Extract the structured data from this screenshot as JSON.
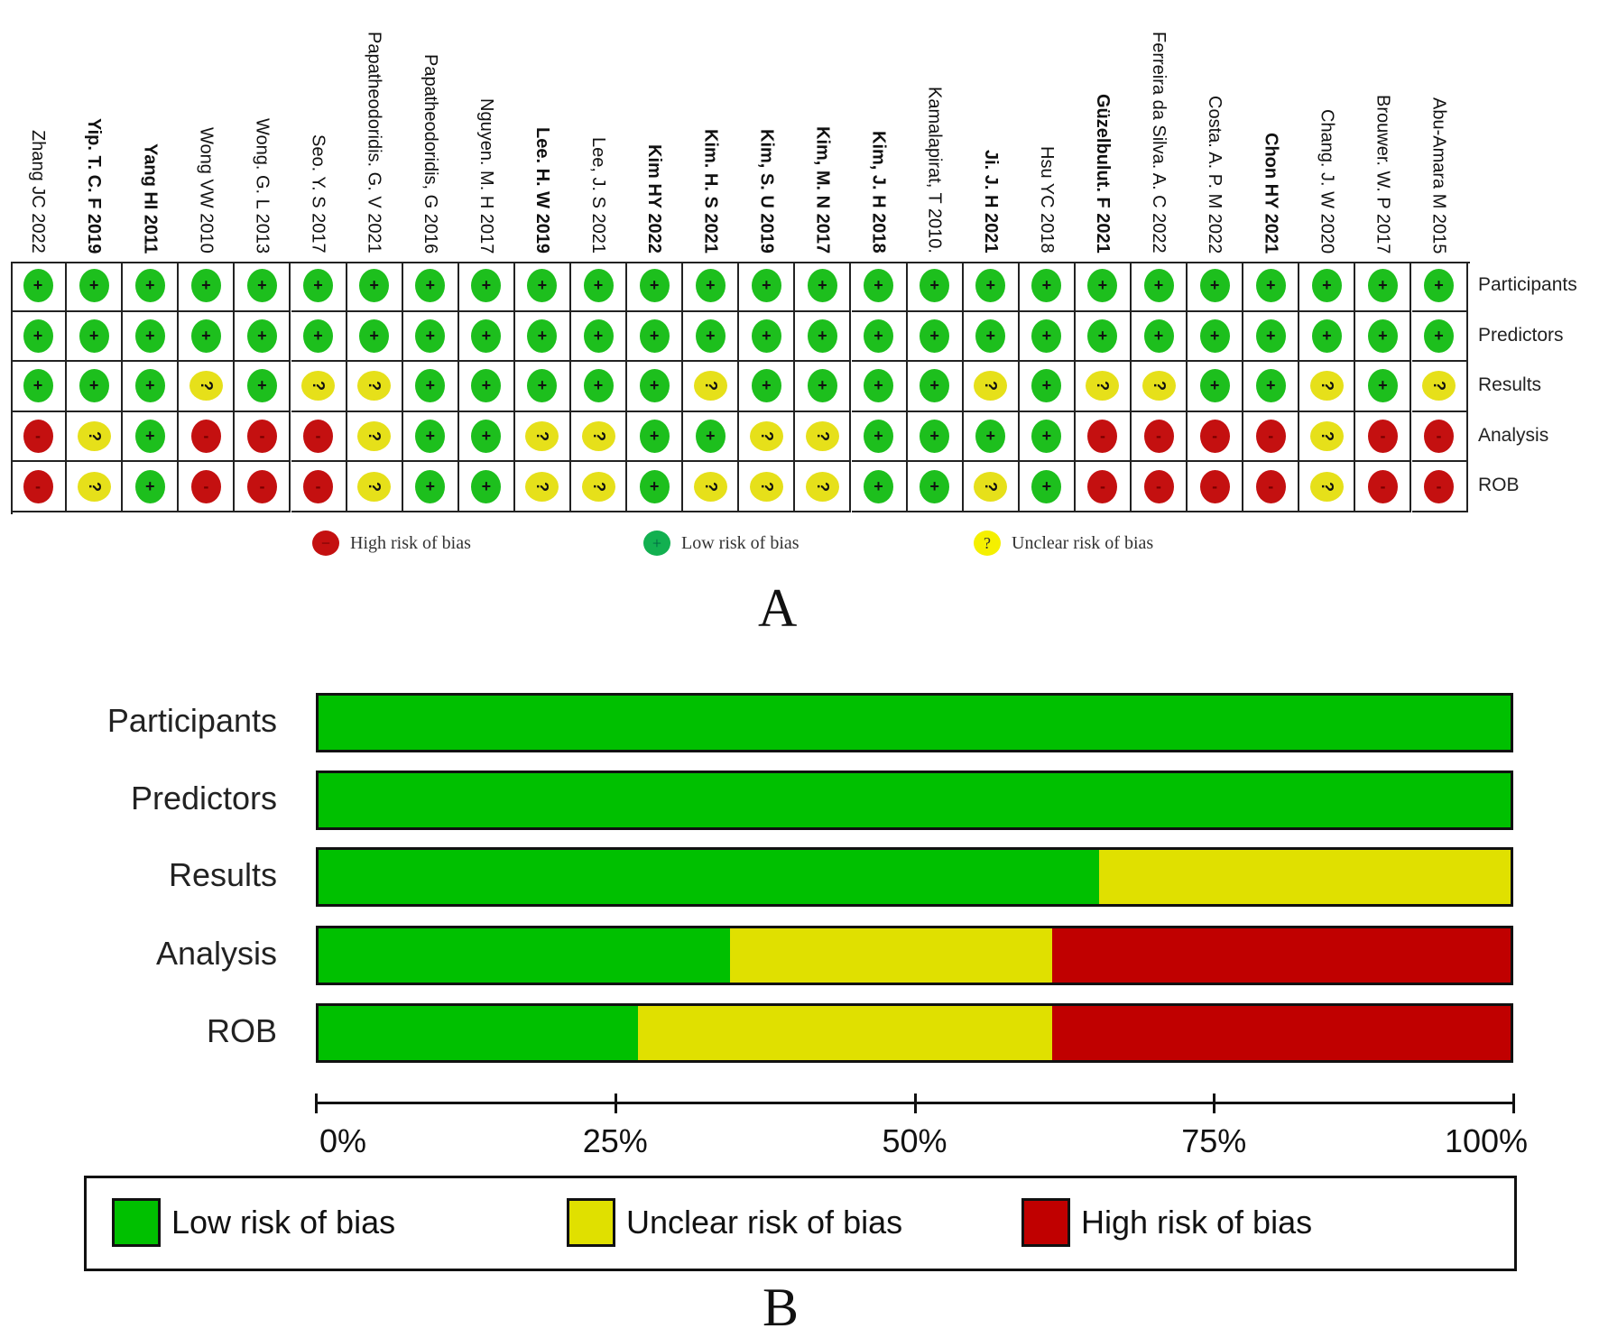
{
  "colors": {
    "low": "#00c000",
    "unclear": "#e0e000",
    "high": "#c00000",
    "low_dot": "#1dbf1d",
    "unclear_dot": "#e6e01a",
    "high_dot": "#c41010"
  },
  "risk_table": {
    "domains": [
      "Participants",
      "Predictors",
      "Results",
      "Analysis",
      "ROB"
    ],
    "studies": [
      {
        "name": "Zhang JC 2022",
        "r": [
          "L",
          "L",
          "L",
          "H",
          "H"
        ]
      },
      {
        "name": "Yip. T. C. F 2019",
        "r": [
          "L",
          "L",
          "L",
          "U",
          "U"
        ]
      },
      {
        "name": "Yang HI 2011",
        "r": [
          "L",
          "L",
          "L",
          "L",
          "L"
        ]
      },
      {
        "name": "Wong VW 2010",
        "r": [
          "L",
          "L",
          "U",
          "H",
          "H"
        ]
      },
      {
        "name": "Wong. G. L 2013",
        "r": [
          "L",
          "L",
          "L",
          "H",
          "H"
        ]
      },
      {
        "name": "Seo. Y. S 2017",
        "r": [
          "L",
          "L",
          "U",
          "H",
          "H"
        ]
      },
      {
        "name": "Papatheodoridis. G. V 2021",
        "r": [
          "L",
          "L",
          "U",
          "U",
          "U"
        ]
      },
      {
        "name": "Papatheodoridis, G 2016",
        "r": [
          "L",
          "L",
          "L",
          "L",
          "L"
        ]
      },
      {
        "name": "Nguyen. M. H 2017",
        "r": [
          "L",
          "L",
          "L",
          "L",
          "L"
        ]
      },
      {
        "name": "Lee. H. W 2019",
        "r": [
          "L",
          "L",
          "L",
          "U",
          "U"
        ]
      },
      {
        "name": "Lee, J. S 2021",
        "r": [
          "L",
          "L",
          "L",
          "U",
          "U"
        ]
      },
      {
        "name": "Kim HY 2022",
        "r": [
          "L",
          "L",
          "L",
          "L",
          "L"
        ]
      },
      {
        "name": "Kim. H. S 2021",
        "r": [
          "L",
          "L",
          "U",
          "L",
          "U"
        ]
      },
      {
        "name": "Kim, S. U 2019",
        "r": [
          "L",
          "L",
          "L",
          "U",
          "U"
        ]
      },
      {
        "name": "Kim, M. N 2017",
        "r": [
          "L",
          "L",
          "L",
          "U",
          "U"
        ]
      },
      {
        "name": "Kim, J. H 2018",
        "r": [
          "L",
          "L",
          "L",
          "L",
          "L"
        ]
      },
      {
        "name": "Kamalapirat, T 2010.",
        "r": [
          "L",
          "L",
          "L",
          "L",
          "L"
        ]
      },
      {
        "name": "Ji. J. H 2021",
        "r": [
          "L",
          "L",
          "U",
          "L",
          "U"
        ]
      },
      {
        "name": "Hsu YC 2018",
        "r": [
          "L",
          "L",
          "L",
          "L",
          "L"
        ]
      },
      {
        "name": "Güzelbulut. F 2021",
        "r": [
          "L",
          "L",
          "U",
          "H",
          "H"
        ]
      },
      {
        "name": "Ferreira da Silva. A. C 2022",
        "r": [
          "L",
          "L",
          "U",
          "H",
          "H"
        ]
      },
      {
        "name": "Costa. A. P. M 2022",
        "r": [
          "L",
          "L",
          "L",
          "H",
          "H"
        ]
      },
      {
        "name": "Chon HY 2021",
        "r": [
          "L",
          "L",
          "L",
          "H",
          "H"
        ]
      },
      {
        "name": "Chang. J. W 2020",
        "r": [
          "L",
          "L",
          "U",
          "U",
          "U"
        ]
      },
      {
        "name": "Brouwer. W. P 2017",
        "r": [
          "L",
          "L",
          "L",
          "H",
          "H"
        ]
      },
      {
        "name": "Abu-Amara M 2015",
        "r": [
          "L",
          "L",
          "U",
          "H",
          "H"
        ]
      }
    ],
    "symbols": {
      "L": "+",
      "U": "?",
      "H": "-"
    },
    "legend": {
      "high": "High risk of bias",
      "low": "Low risk of bias",
      "unclear": "Unclear risk of bias"
    },
    "panel_label": "A"
  },
  "chart_data": {
    "type": "bar",
    "orientation": "horizontal-stacked",
    "categories": [
      "Participants",
      "Predictors",
      "Results",
      "Analysis",
      "ROB"
    ],
    "series": [
      {
        "name": "Low risk of bias",
        "key": "low",
        "values": [
          100,
          100,
          65.4,
          34.6,
          26.9
        ]
      },
      {
        "name": "Unclear risk of bias",
        "key": "unclear",
        "values": [
          0,
          0,
          34.6,
          26.9,
          34.6
        ]
      },
      {
        "name": "High risk of bias",
        "key": "high",
        "values": [
          0,
          0,
          0,
          38.5,
          38.5
        ]
      }
    ],
    "xlim": [
      0,
      100
    ],
    "xticks": [
      0,
      25,
      50,
      75,
      100
    ],
    "xtick_labels": [
      "0%",
      "25%",
      "50%",
      "75%",
      "100%"
    ],
    "legend_position": "bottom",
    "panel_label": "B"
  }
}
